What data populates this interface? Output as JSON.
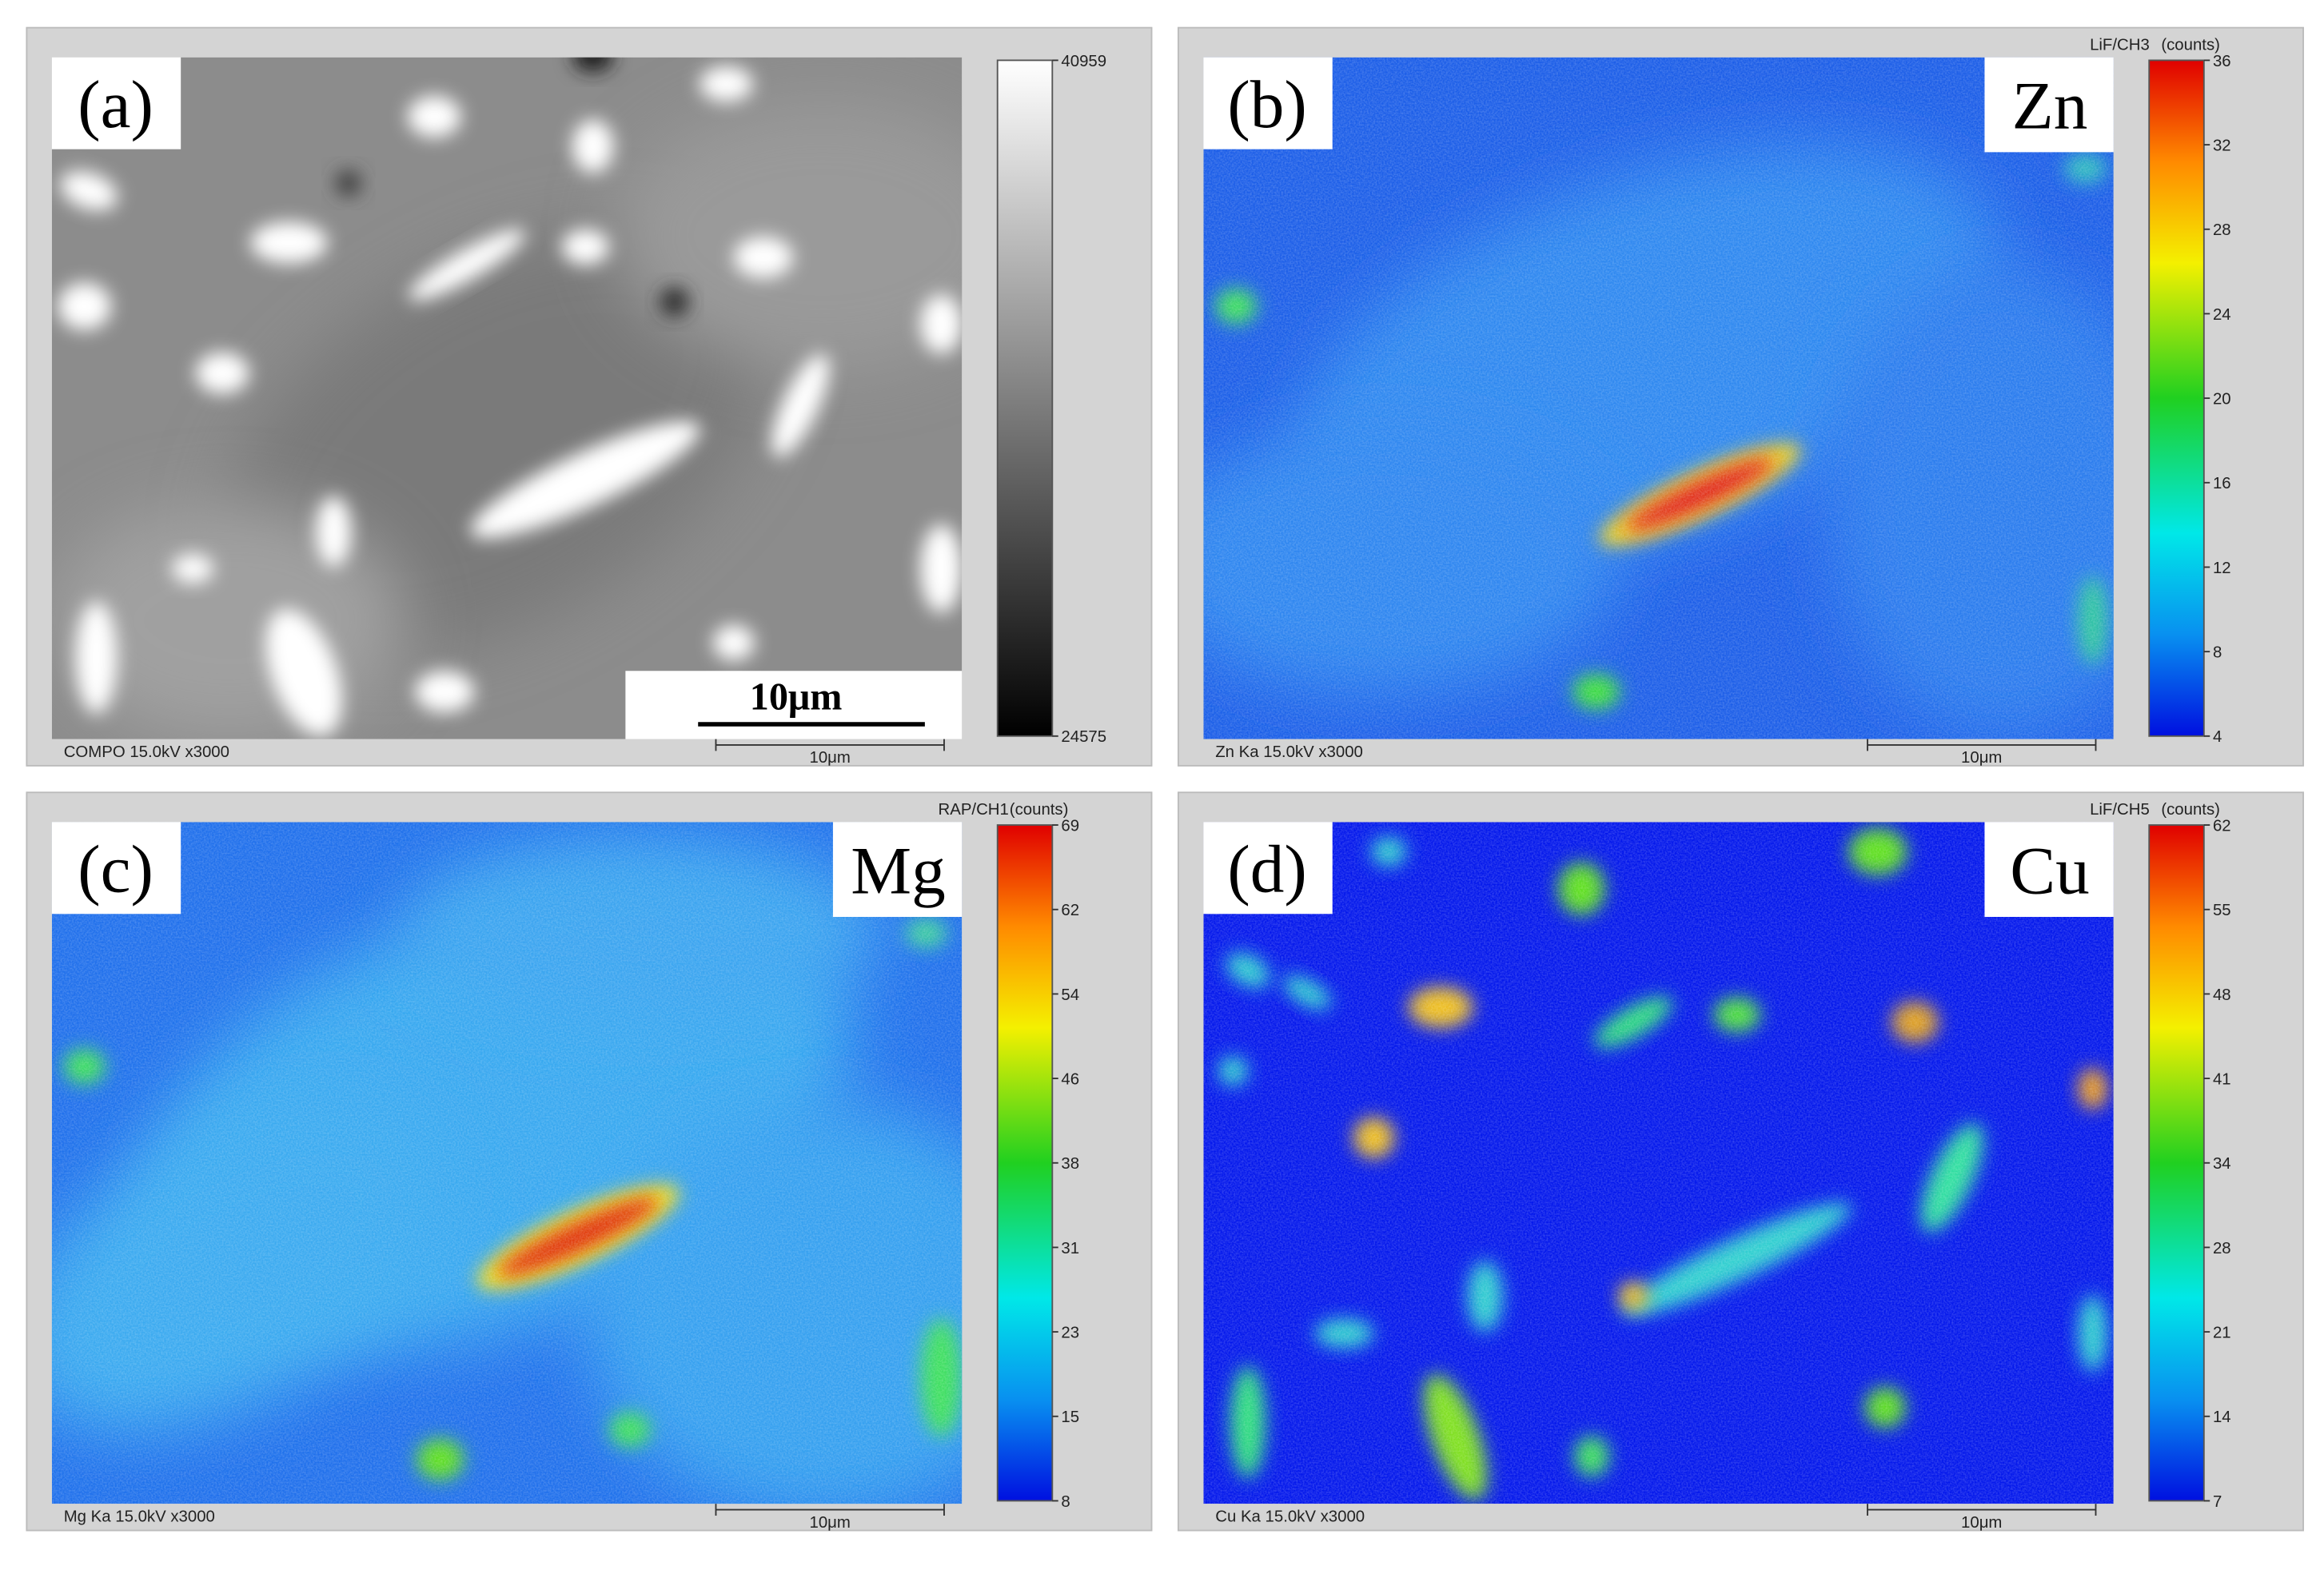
{
  "panels": [
    {
      "label": "(a)",
      "footer": "COMPO 15.0kV x3000",
      "scale_bar": "10μm",
      "colorbar_ticks": [
        40959,
        24575
      ],
      "colormap": "gray"
    },
    {
      "label": "(b)",
      "element": "Zn",
      "channel": "LiF/CH3",
      "unit": "(counts)",
      "footer": "Zn Ka 15.0kV x3000",
      "scale_bar": "10μm",
      "colorbar_ticks": [
        36,
        32,
        28,
        24,
        20,
        16,
        12,
        8,
        4
      ],
      "colormap": "jet"
    },
    {
      "label": "(c)",
      "element": "Mg",
      "channel": "RAP/CH1",
      "unit": "(counts)",
      "footer": "Mg Ka 15.0kV x3000",
      "scale_bar": "10μm",
      "colorbar_ticks": [
        69,
        62,
        54,
        46,
        38,
        31,
        23,
        15,
        8
      ],
      "colormap": "jet"
    },
    {
      "label": "(d)",
      "element": "Cu",
      "channel": "LiF/CH5",
      "unit": "(counts)",
      "footer": "Cu Ka 15.0kV x3000",
      "scale_bar": "10μm",
      "colorbar_ticks": [
        62,
        55,
        48,
        41,
        34,
        28,
        21,
        14,
        7
      ],
      "colormap": "jet"
    }
  ]
}
